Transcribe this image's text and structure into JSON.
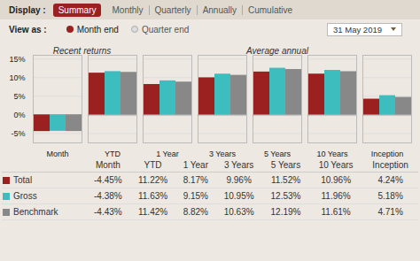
{
  "chart_data": {
    "type": "bar",
    "categories": [
      "Month",
      "YTD",
      "1 Year",
      "3 Years",
      "5 Years",
      "10 Years",
      "Inception"
    ],
    "series": [
      {
        "name": "Total",
        "color": "#9b2020",
        "values": [
          -4.45,
          11.22,
          8.17,
          9.96,
          11.52,
          10.96,
          4.24
        ],
        "value_labels": [
          "-4.45%",
          "11.22%",
          "8.17%",
          "9.96%",
          "11.52%",
          "10.96%",
          "4.24%"
        ]
      },
      {
        "name": "Gross",
        "color": "#3dbdbd",
        "values": [
          -4.38,
          11.63,
          9.15,
          10.95,
          12.53,
          11.96,
          5.18
        ],
        "value_labels": [
          "-4.38%",
          "11.63%",
          "9.15%",
          "10.95%",
          "12.53%",
          "11.96%",
          "5.18%"
        ]
      },
      {
        "name": "Benchmark",
        "color": "#888888",
        "values": [
          -4.43,
          11.42,
          8.82,
          10.63,
          12.19,
          11.61,
          4.71
        ],
        "value_labels": [
          "-4.43%",
          "11.42%",
          "8.82%",
          "10.63%",
          "12.19%",
          "11.61%",
          "4.71%"
        ]
      }
    ],
    "ylim": [
      -7.5,
      16
    ],
    "yticks": [
      {
        "value": -5,
        "label": "-5%"
      },
      {
        "value": 0,
        "label": "0%"
      },
      {
        "value": 5,
        "label": "5%"
      },
      {
        "value": 10,
        "label": "10%"
      },
      {
        "value": 15,
        "label": "15%"
      }
    ],
    "grid": true,
    "annotations": [
      "Recent returns",
      "Average annual"
    ]
  },
  "controls": {
    "display_label": "Display :",
    "active_view": "Summary",
    "views": [
      "Monthly",
      "Quarterly",
      "Annually",
      "Cumulative"
    ],
    "view_as_label": "View as :",
    "options": [
      "Month end",
      "Quarter end"
    ],
    "date": "31 May 2019"
  }
}
